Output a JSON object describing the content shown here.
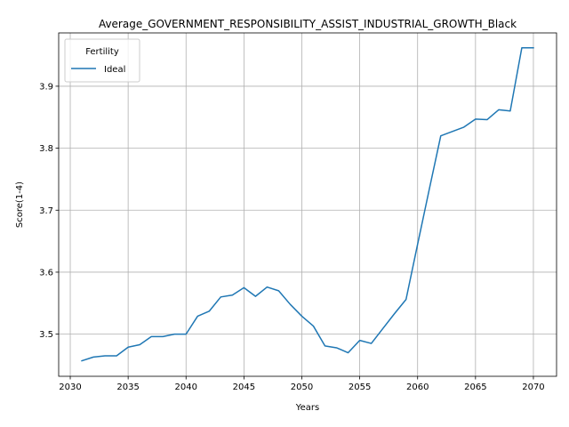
{
  "chart_data": {
    "type": "line",
    "title": "Average_GOVERNMENT_RESPONSIBILITY_ASSIST_INDUSTRIAL_GROWTH_Black",
    "xlabel": "Years",
    "ylabel": "Score(1-4)",
    "xlim": [
      2029,
      2072
    ],
    "ylim": [
      3.432,
      3.986
    ],
    "xticks": [
      2030,
      2035,
      2040,
      2045,
      2050,
      2055,
      2060,
      2065,
      2070
    ],
    "yticks": [
      3.5,
      3.6,
      3.7,
      3.8,
      3.9
    ],
    "ytick_labels": [
      "3.5",
      "3.6",
      "3.7",
      "3.8",
      "3.9"
    ],
    "grid": true,
    "legend": {
      "title": "Fertility",
      "position": "top-left"
    },
    "series": [
      {
        "name": "Ideal",
        "color": "#1f77b4",
        "x": [
          2031,
          2032,
          2033,
          2034,
          2035,
          2036,
          2037,
          2038,
          2039,
          2040,
          2041,
          2042,
          2043,
          2044,
          2045,
          2046,
          2047,
          2048,
          2049,
          2050,
          2051,
          2052,
          2053,
          2054,
          2055,
          2056,
          2057,
          2058,
          2059,
          2060,
          2061,
          2062,
          2063,
          2064,
          2065,
          2066,
          2067,
          2068,
          2069,
          2070
        ],
        "y": [
          3.457,
          3.463,
          3.465,
          3.465,
          3.479,
          3.483,
          3.496,
          3.496,
          3.5,
          3.5,
          3.529,
          3.537,
          3.56,
          3.563,
          3.575,
          3.561,
          3.576,
          3.57,
          3.548,
          3.529,
          3.513,
          3.481,
          3.478,
          3.47,
          3.49,
          3.485,
          3.509,
          3.533,
          3.556,
          3.645,
          3.733,
          3.82,
          3.827,
          3.834,
          3.847,
          3.846,
          3.862,
          3.86,
          3.962,
          3.962
        ]
      }
    ]
  }
}
